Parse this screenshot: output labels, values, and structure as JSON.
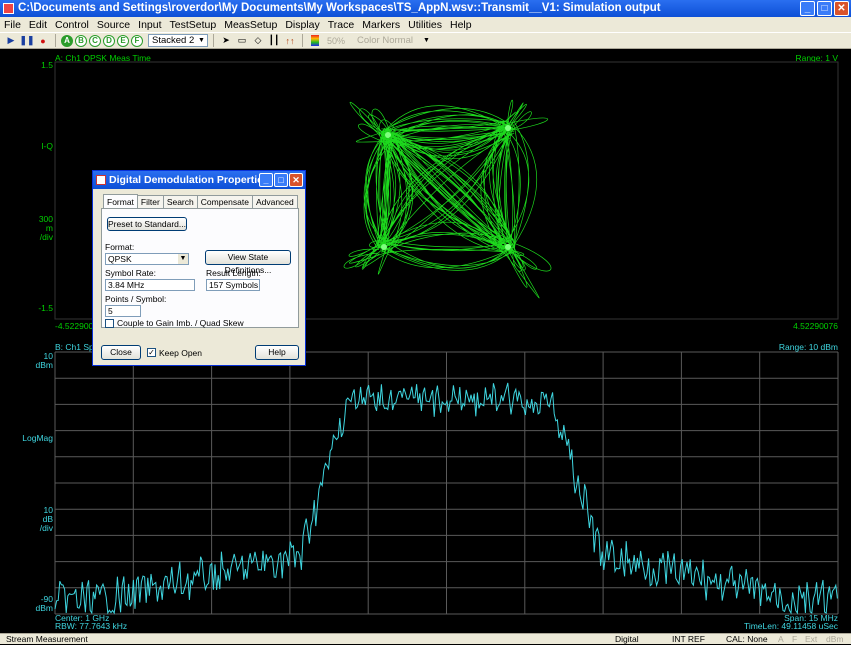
{
  "window": {
    "title": "C:\\Documents and Settings\\roverdor\\My Documents\\My Workspaces\\TS_AppN.wsv::Transmit__V1: Simulation output"
  },
  "menu": [
    "File",
    "Edit",
    "Control",
    "Source",
    "Input",
    "TestSetup",
    "MeasSetup",
    "Display",
    "Trace",
    "Markers",
    "Utilities",
    "Help"
  ],
  "toolbar": {
    "trace_letters": [
      "A",
      "B",
      "C",
      "D",
      "E",
      "F"
    ],
    "layout_value": "Stacked 2",
    "opacity": "50%",
    "color_mode": "Color Normal"
  },
  "trace_a": {
    "title": "A: Ch1 QPSK Meas Time",
    "range": "Range: 1  V",
    "y_top": "1.5",
    "y_mid": "I-Q",
    "scale_value": "300",
    "scale_unit": "m",
    "scale_per": "/div",
    "y_bottom": "-1.5",
    "x_left": "-4.5229008",
    "x_right": "4.52290076"
  },
  "trace_b": {
    "title": "B: Ch1 Spectrum",
    "range": "Range: 10 dBm",
    "y_top_value": "10",
    "y_top_unit": "dBm",
    "y_mid": "LogMag",
    "scale_value": "10",
    "scale_unit": "dB",
    "scale_per": "/div",
    "y_bottom_value": "-90",
    "y_bottom_unit": "dBm",
    "center": "Center: 1 GHz",
    "rbw": "RBW: 77.7643 kHz",
    "span": "Span: 15 MHz",
    "timelen": "TimeLen: 49.11458 uSec"
  },
  "dialog": {
    "title": "Digital Demodulation Properties",
    "tabs": [
      "Format",
      "Filter",
      "Search",
      "Compensate",
      "Advanced"
    ],
    "preset_button": "Preset to Standard...",
    "format_label": "Format:",
    "format_value": "QPSK",
    "view_state_button": "View State Definitions...",
    "symbol_rate_label": "Symbol Rate:",
    "symbol_rate_value": "3.84 MHz",
    "result_length_label": "Result Length:",
    "result_length_value": "157 Symbols",
    "points_label": "Points / Symbol:",
    "points_value": "5",
    "couple_label": "Couple to Gain Imb. / Quad Skew",
    "close_button": "Close",
    "keep_open_label": "Keep Open",
    "help_button": "Help"
  },
  "status": {
    "left": "Stream Measurement",
    "mode": "Digital",
    "ref": "INT REF",
    "cal": "CAL: None",
    "indicators": [
      "A",
      "F",
      "Ext",
      "dBm"
    ]
  },
  "colors": {
    "trace_a": "#00ff00",
    "trace_b": "#3fd6e0",
    "grid": "#5a5a5a"
  }
}
